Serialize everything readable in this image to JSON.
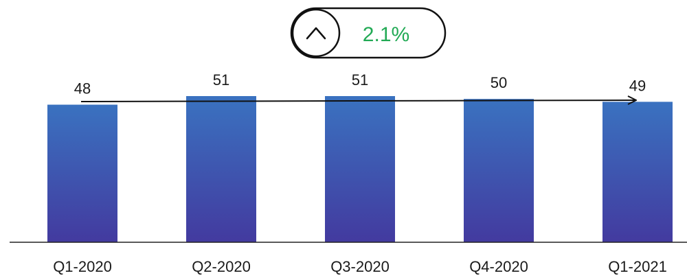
{
  "chart_data": {
    "type": "bar",
    "categories": [
      "Q1-2020",
      "Q2-2020",
      "Q3-2020",
      "Q4-2020",
      "Q1-2021"
    ],
    "values": [
      48,
      51,
      51,
      50,
      49
    ],
    "data_labels": [
      "48",
      "51",
      "51",
      "50",
      "49"
    ],
    "ylim": [
      0,
      51
    ],
    "grid": false,
    "legend": "none",
    "trend_arrow": {
      "from": "Q1-2020",
      "to": "Q1-2021",
      "direction": "up"
    },
    "colors": {
      "bar_top": "#3a72c0",
      "bar_bottom": "#433a9f",
      "axis": "#222222"
    }
  },
  "badge": {
    "icon": "chevron-up-icon",
    "value": "2.1%",
    "value_color": "#22aa55"
  }
}
